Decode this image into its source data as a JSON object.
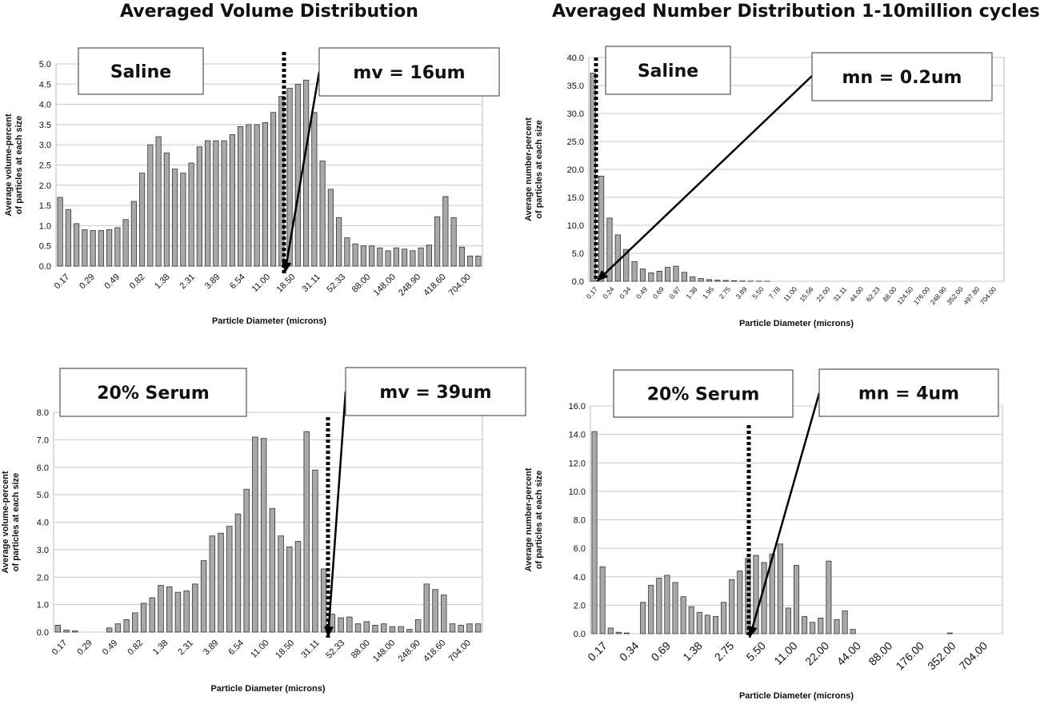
{
  "titles": {
    "left": "Averaged Volume Distribution",
    "right": "Averaged Number Distribution 1-10million cycles"
  },
  "chart_data": [
    {
      "id": "tl",
      "type": "bar",
      "label": "Saline",
      "annotation": "mv = 16um",
      "ylabel": [
        "Average volume-percent",
        "of particles at each size"
      ],
      "xlabel": "Particle Diameter (microns)",
      "ylim": [
        0,
        5.0
      ],
      "yticks": [
        "0.0",
        "0.5",
        "1.0",
        "1.5",
        "2.0",
        "2.5",
        "3.0",
        "3.5",
        "4.0",
        "4.5",
        "5.0"
      ],
      "xtick_labels": [
        "0.17",
        "0.29",
        "0.49",
        "0.82",
        "1.38",
        "2.31",
        "3.89",
        "6.54",
        "11.00",
        "18.50",
        "31.11",
        "52.33",
        "88.00",
        "148.00",
        "248.90",
        "418.60",
        "704.00"
      ],
      "values": [
        1.7,
        1.4,
        1.05,
        0.9,
        0.88,
        0.88,
        0.9,
        0.95,
        1.15,
        1.6,
        2.3,
        3.0,
        3.2,
        2.8,
        2.4,
        2.3,
        2.55,
        2.95,
        3.1,
        3.1,
        3.1,
        3.25,
        3.45,
        3.5,
        3.5,
        3.55,
        3.8,
        4.2,
        4.4,
        4.5,
        4.6,
        3.8,
        2.6,
        1.9,
        1.2,
        0.7,
        0.55,
        0.5,
        0.5,
        0.45,
        0.38,
        0.45,
        0.42,
        0.38,
        0.45,
        0.52,
        1.22,
        1.72,
        1.2,
        0.47,
        0.25,
        0.25
      ],
      "median_line_x": "18.50",
      "grid": true
    },
    {
      "id": "tr",
      "type": "bar",
      "label": "Saline",
      "annotation": "mn = 0.2um",
      "ylabel": [
        "Average number-percent",
        "of particles at each size"
      ],
      "xlabel": "Particle Diameter (microns)",
      "ylim": [
        0,
        40.0
      ],
      "yticks": [
        "0.0",
        "5.0",
        "10.0",
        "15.0",
        "20.0",
        "25.0",
        "30.0",
        "35.0",
        "40.0"
      ],
      "xtick_labels": [
        "0.17",
        "0.24",
        "0.34",
        "0.49",
        "0.69",
        "0.97",
        "1.38",
        "1.95",
        "2.75",
        "3.89",
        "5.50",
        "7.78",
        "11.00",
        "15.56",
        "22.00",
        "31.11",
        "44.00",
        "62.23",
        "88.00",
        "124.50",
        "176.00",
        "248.90",
        "352.00",
        "497.80",
        "704.00"
      ],
      "values": [
        37.2,
        18.8,
        11.3,
        8.3,
        5.7,
        3.5,
        2.2,
        1.5,
        1.8,
        2.5,
        2.7,
        1.6,
        0.8,
        0.5,
        0.3,
        0.2,
        0.15,
        0.1,
        0.05,
        0.03,
        0.02,
        0.01,
        0,
        0,
        0,
        0,
        0,
        0,
        0,
        0,
        0,
        0,
        0,
        0,
        0,
        0,
        0,
        0,
        0,
        0,
        0,
        0,
        0,
        0,
        0,
        0,
        0,
        0,
        0,
        0
      ],
      "median_line_x": "0.17",
      "grid": true
    },
    {
      "id": "bl",
      "type": "bar",
      "label": "20% Serum",
      "annotation": "mv = 39um",
      "ylabel": [
        "Average volume-percent",
        "of particles at each size"
      ],
      "xlabel": "Particle Diameter (microns)",
      "ylim": [
        0,
        8.0
      ],
      "yticks": [
        "0.0",
        "1.0",
        "2.0",
        "3.0",
        "4.0",
        "5.0",
        "6.0",
        "7.0",
        "8.0"
      ],
      "xtick_labels": [
        "0.17",
        "0.29",
        "0.49",
        "0.82",
        "1.38",
        "2.31",
        "3.89",
        "6.54",
        "11.00",
        "18.50",
        "31.11",
        "52.33",
        "88.00",
        "148.00",
        "248.90",
        "418.60",
        "704.00"
      ],
      "values": [
        0.25,
        0.07,
        0.04,
        0,
        0,
        0,
        0.15,
        0.3,
        0.45,
        0.7,
        1.05,
        1.25,
        1.7,
        1.65,
        1.45,
        1.5,
        1.75,
        2.6,
        3.5,
        3.6,
        3.85,
        4.3,
        5.2,
        7.1,
        7.05,
        4.5,
        3.5,
        3.1,
        3.3,
        7.3,
        5.9,
        2.3,
        0.65,
        0.52,
        0.55,
        0.3,
        0.38,
        0.25,
        0.3,
        0.2,
        0.2,
        0.1,
        0.45,
        1.75,
        1.55,
        1.35,
        0.3,
        0.25,
        0.3,
        0.3
      ],
      "median_line_x": "52.33",
      "grid": true
    },
    {
      "id": "br",
      "type": "bar",
      "label": "20% Serum",
      "annotation": "mn = 4um",
      "ylabel": [
        "Average number-percent",
        "of particles at each size"
      ],
      "xlabel": "Particle Diameter (microns)",
      "ylim": [
        0,
        16.0
      ],
      "yticks": [
        "0.0",
        "2.0",
        "4.0",
        "6.0",
        "8.0",
        "10.0",
        "12.0",
        "14.0",
        "16.0"
      ],
      "xtick_labels": [
        "0.17",
        "0.34",
        "0.69",
        "1.38",
        "2.75",
        "5.50",
        "11.00",
        "22.00",
        "44.00",
        "88.00",
        "176.00",
        "352.00",
        "704.00"
      ],
      "values": [
        14.2,
        4.7,
        0.4,
        0.1,
        0.05,
        0,
        2.2,
        3.4,
        3.9,
        4.1,
        3.6,
        2.6,
        1.9,
        1.5,
        1.3,
        1.2,
        2.2,
        3.8,
        4.4,
        5.3,
        5.5,
        5.0,
        5.6,
        6.3,
        1.8,
        4.8,
        1.2,
        0.8,
        1.1,
        5.1,
        1.0,
        1.6,
        0.3,
        0,
        0,
        0,
        0,
        0,
        0,
        0,
        0,
        0,
        0,
        0,
        0.05,
        0,
        0,
        0,
        0,
        0,
        0
      ],
      "median_line_x": "4.00",
      "grid": true
    }
  ]
}
